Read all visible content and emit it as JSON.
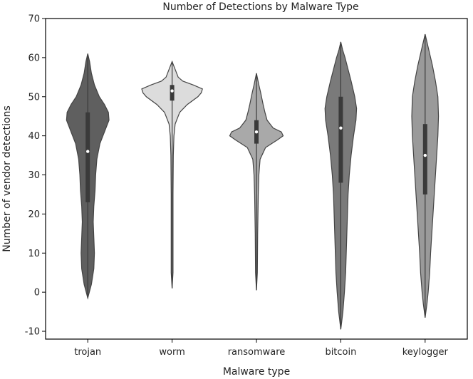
{
  "chart_data": {
    "type": "violin",
    "title": "Number of Detections by Malware Type",
    "xlabel": "Malware type",
    "ylabel": "Number of vendor detections",
    "ylim": [
      -12,
      70
    ],
    "yticks": [
      -10,
      0,
      10,
      20,
      30,
      40,
      50,
      60,
      70
    ],
    "grid": false,
    "categories": [
      "trojan",
      "worm",
      "ransomware",
      "bitcoin",
      "keylogger"
    ],
    "colors": [
      "#5f5f5f",
      "#dcdcdc",
      "#a9a9a9",
      "#7a7a7a",
      "#9a9a9a"
    ],
    "violins": [
      {
        "name": "trojan",
        "min": -1.5,
        "max": 61,
        "q1": 23,
        "median": 36,
        "q3": 46,
        "profile": [
          [
            -1.5,
            0
          ],
          [
            2,
            0.12
          ],
          [
            6,
            0.2
          ],
          [
            10,
            0.22
          ],
          [
            14,
            0.2
          ],
          [
            18,
            0.18
          ],
          [
            22,
            0.2
          ],
          [
            26,
            0.24
          ],
          [
            30,
            0.26
          ],
          [
            34,
            0.3
          ],
          [
            38,
            0.4
          ],
          [
            42,
            0.6
          ],
          [
            44,
            0.7
          ],
          [
            46,
            0.68
          ],
          [
            48,
            0.55
          ],
          [
            50,
            0.38
          ],
          [
            53,
            0.22
          ],
          [
            56,
            0.12
          ],
          [
            59,
            0.06
          ],
          [
            61,
            0
          ]
        ]
      },
      {
        "name": "worm",
        "min": 1,
        "max": 59,
        "q1": 49,
        "median": 51.5,
        "q3": 53,
        "profile": [
          [
            1,
            0
          ],
          [
            5,
            0.03
          ],
          [
            15,
            0.03
          ],
          [
            25,
            0.03
          ],
          [
            35,
            0.04
          ],
          [
            40,
            0.06
          ],
          [
            43,
            0.1
          ],
          [
            46,
            0.25
          ],
          [
            48,
            0.5
          ],
          [
            50,
            0.85
          ],
          [
            51,
            0.96
          ],
          [
            52,
            1.0
          ],
          [
            53,
            0.7
          ],
          [
            54,
            0.35
          ],
          [
            55,
            0.2
          ],
          [
            57,
            0.1
          ],
          [
            59,
            0
          ]
        ]
      },
      {
        "name": "ransomware",
        "min": 0.5,
        "max": 56,
        "q1": 38,
        "median": 41,
        "q3": 44,
        "profile": [
          [
            0.5,
            0
          ],
          [
            5,
            0.03
          ],
          [
            15,
            0.04
          ],
          [
            25,
            0.06
          ],
          [
            30,
            0.08
          ],
          [
            34,
            0.12
          ],
          [
            37,
            0.3
          ],
          [
            39,
            0.7
          ],
          [
            40,
            0.88
          ],
          [
            41,
            0.82
          ],
          [
            42,
            0.55
          ],
          [
            44,
            0.35
          ],
          [
            46,
            0.28
          ],
          [
            48,
            0.22
          ],
          [
            51,
            0.14
          ],
          [
            53,
            0.08
          ],
          [
            56,
            0
          ]
        ]
      },
      {
        "name": "bitcoin",
        "min": -9.5,
        "max": 64,
        "q1": 28,
        "median": 42,
        "q3": 50,
        "profile": [
          [
            -9.5,
            0
          ],
          [
            -5,
            0.07
          ],
          [
            0,
            0.12
          ],
          [
            5,
            0.16
          ],
          [
            10,
            0.18
          ],
          [
            15,
            0.2
          ],
          [
            20,
            0.22
          ],
          [
            25,
            0.24
          ],
          [
            30,
            0.28
          ],
          [
            35,
            0.34
          ],
          [
            40,
            0.42
          ],
          [
            44,
            0.5
          ],
          [
            47,
            0.52
          ],
          [
            50,
            0.46
          ],
          [
            54,
            0.34
          ],
          [
            57,
            0.24
          ],
          [
            60,
            0.14
          ],
          [
            62,
            0.06
          ],
          [
            64,
            0
          ]
        ]
      },
      {
        "name": "keylogger",
        "min": -6.5,
        "max": 66,
        "q1": 25,
        "median": 35,
        "q3": 43,
        "profile": [
          [
            -6.5,
            0
          ],
          [
            -3,
            0.06
          ],
          [
            0,
            0.1
          ],
          [
            5,
            0.15
          ],
          [
            10,
            0.18
          ],
          [
            15,
            0.22
          ],
          [
            20,
            0.26
          ],
          [
            25,
            0.3
          ],
          [
            30,
            0.34
          ],
          [
            35,
            0.38
          ],
          [
            40,
            0.42
          ],
          [
            45,
            0.44
          ],
          [
            50,
            0.42
          ],
          [
            54,
            0.34
          ],
          [
            58,
            0.24
          ],
          [
            62,
            0.12
          ],
          [
            64,
            0.06
          ],
          [
            66,
            0
          ]
        ]
      }
    ]
  }
}
